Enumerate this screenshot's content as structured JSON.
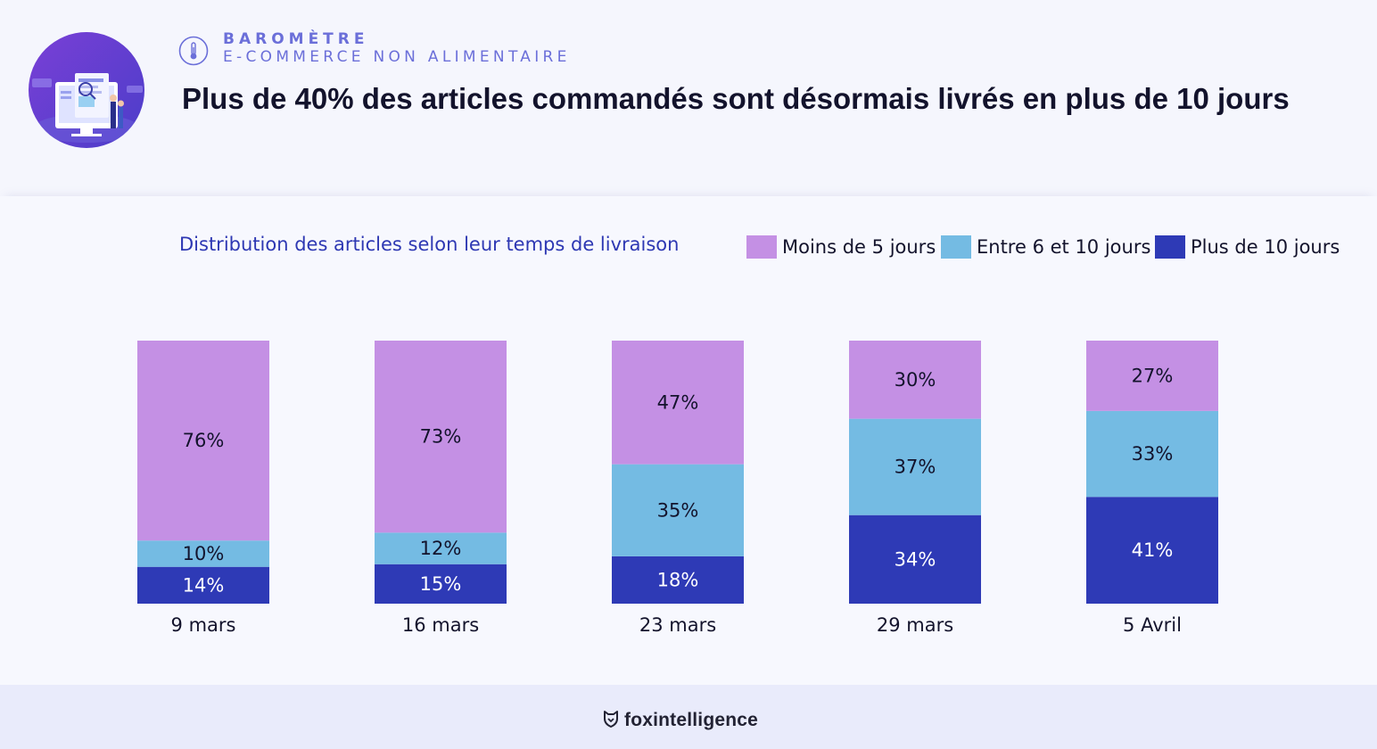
{
  "header": {
    "kicker_line1": "BAROMÈTRE",
    "kicker_line2": "E-COMMERCE NON ALIMENTAIRE",
    "headline": "Plus de 40% des articles commandés sont désormais livrés en plus de 10 jours",
    "hero_icon": "ecommerce-illustration",
    "kicker_icon": "thermometer-icon"
  },
  "chart_data": {
    "type": "bar",
    "stacked": true,
    "title": "Distribution des articles selon leur temps de livraison",
    "categories": [
      "9 mars",
      "16 mars",
      "23 mars",
      "29 mars",
      "5 Avril"
    ],
    "series": [
      {
        "name": "Plus de 10 jours",
        "color": "#2e3ab6",
        "label_color": "#ffffff",
        "values": [
          14,
          15,
          18,
          34,
          41
        ]
      },
      {
        "name": "Entre 6 et 10 jours",
        "color": "#74bbe3",
        "label_color": "#13132c",
        "values": [
          10,
          12,
          35,
          37,
          33
        ]
      },
      {
        "name": "Moins de 5 jours",
        "color": "#c490e4",
        "label_color": "#13132c",
        "values": [
          76,
          73,
          47,
          30,
          27
        ]
      }
    ],
    "value_suffix": "%",
    "legend_position": "top-right",
    "grid": false
  },
  "legend": [
    {
      "label": "Moins de 5 jours",
      "color": "#c490e4"
    },
    {
      "label": "Entre 6 et 10 jours",
      "color": "#74bbe3"
    },
    {
      "label": "Plus de 10 jours",
      "color": "#2e3ab6"
    }
  ],
  "footer": {
    "brand": "foxintelligence",
    "brand_icon": "fox-logo-icon"
  }
}
